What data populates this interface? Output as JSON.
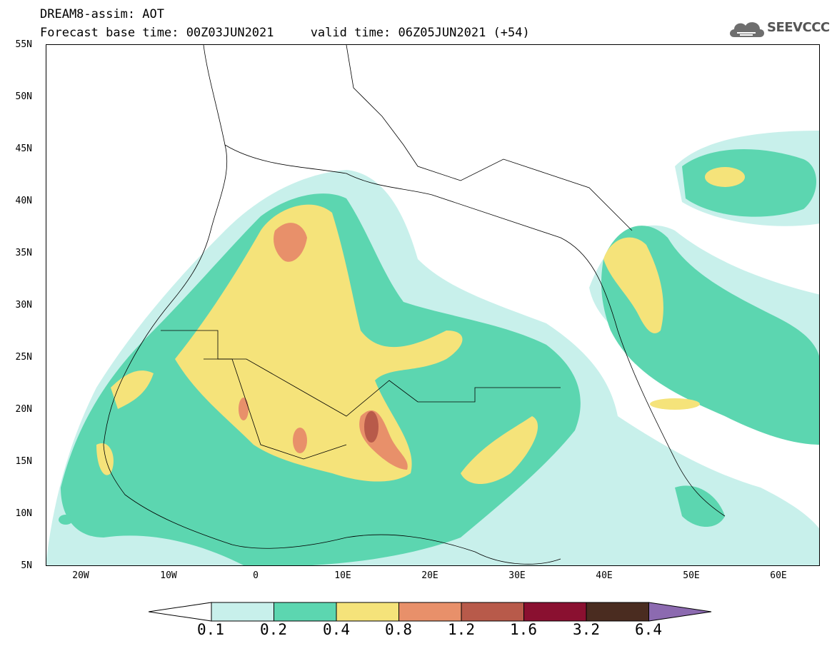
{
  "header": {
    "line1": "DREAM8-assim: AOT",
    "line2": "Forecast base time: 00Z03JUN2021     valid time: 06Z05JUN2021 (+54)"
  },
  "logo": {
    "text": "SEEVCCC",
    "icon": "cloud-icon"
  },
  "map": {
    "lat_labels": [
      "55N",
      "50N",
      "45N",
      "40N",
      "35N",
      "30N",
      "25N",
      "20N",
      "15N",
      "10N",
      "5N"
    ],
    "lon_labels": [
      "20W",
      "10W",
      "0",
      "10E",
      "20E",
      "30E",
      "40E",
      "50E",
      "60E"
    ]
  },
  "colorbar": {
    "labels": [
      "0.1",
      "0.2",
      "0.4",
      "0.8",
      "1.2",
      "1.6",
      "3.2",
      "6.4"
    ],
    "colors": [
      "#c8f0eb",
      "#5cd6b0",
      "#f5e37a",
      "#e8906a",
      "#b85a4a",
      "#8a1030",
      "#4a2c20",
      "#8c6ab0"
    ]
  }
}
